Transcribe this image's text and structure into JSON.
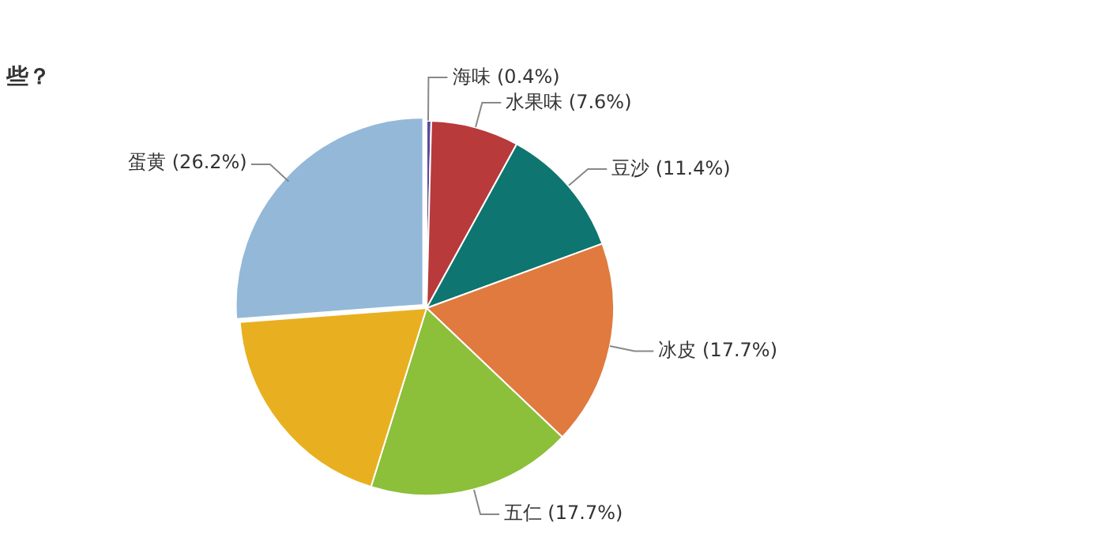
{
  "chart_data": {
    "type": "pie",
    "title": "些？",
    "categories": [
      "海味",
      "水果味",
      "豆沙",
      "冰皮",
      "五仁",
      null,
      "蛋黄"
    ],
    "values": [
      0.4,
      7.6,
      11.4,
      17.7,
      17.7,
      19.0,
      26.2
    ],
    "value_labels": [
      "(0.4%)",
      "(7.6%)",
      "(11.4%)",
      "(17.7%)",
      "(17.7%)",
      null,
      "(26.2%)"
    ],
    "colors": [
      "#5b4a9a",
      "#b83a3a",
      "#0e7570",
      "#e07a3e",
      "#8cbf3a",
      "#e8b020",
      "#94b8d8"
    ],
    "legend": false
  }
}
